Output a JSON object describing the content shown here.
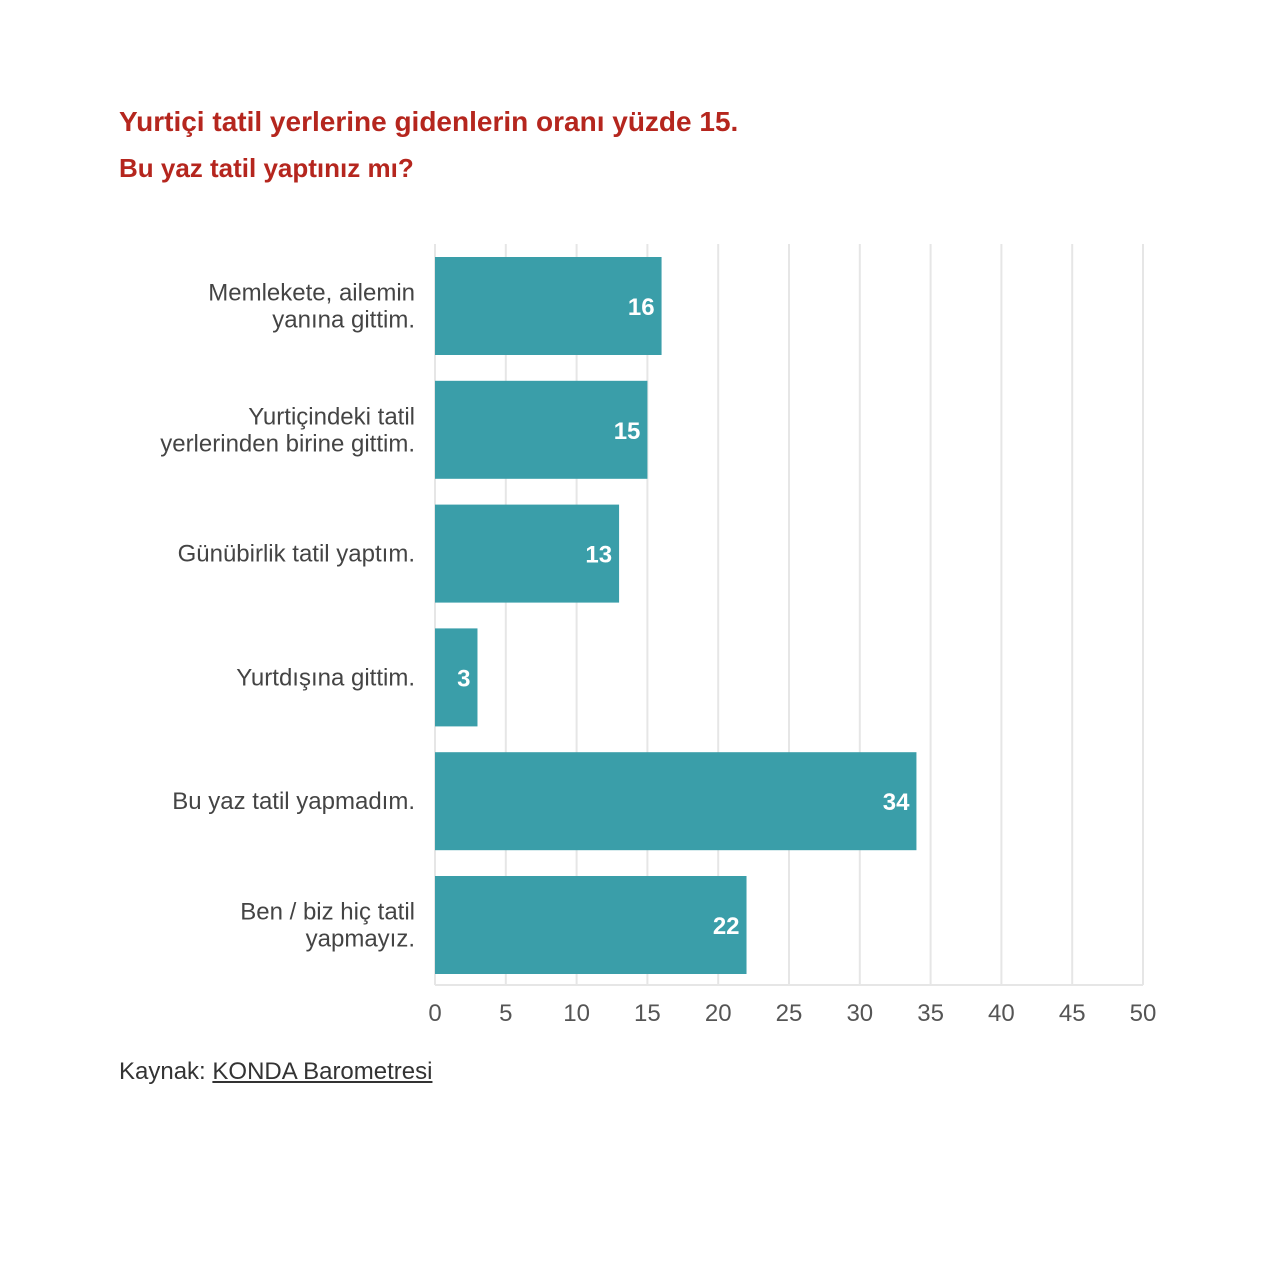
{
  "header": {
    "title": "Yurtiçi tatil yerlerine gidenlerin oranı yüzde 15.",
    "subtitle": "Bu yaz tatil yaptınız mı?"
  },
  "chart_data": {
    "type": "bar",
    "orientation": "horizontal",
    "categories": [
      [
        "Memlekete, ailemin",
        "yanına gittim."
      ],
      [
        "Yurtiçindeki tatil",
        "yerlerinden birine gittim."
      ],
      [
        "Günübirlik tatil yaptım."
      ],
      [
        "Yurtdışına gittim."
      ],
      [
        "Bu yaz tatil yapmadım."
      ],
      [
        "Ben / biz hiç tatil",
        "yapmayız."
      ]
    ],
    "values": [
      16,
      15,
      13,
      3,
      34,
      22
    ],
    "value_labels": [
      "16",
      "15",
      "13",
      "3",
      "34",
      "22"
    ],
    "xlim": [
      0,
      50
    ],
    "xticks": [
      0,
      5,
      10,
      15,
      20,
      25,
      30,
      35,
      40,
      45,
      50
    ],
    "grid": true,
    "bar_color": "#3a9ea9",
    "value_label_color": "#ffffff",
    "title_color": "#b5261e"
  },
  "footer": {
    "source_prefix": "Kaynak: ",
    "source_link": "KONDA Barometresi"
  }
}
